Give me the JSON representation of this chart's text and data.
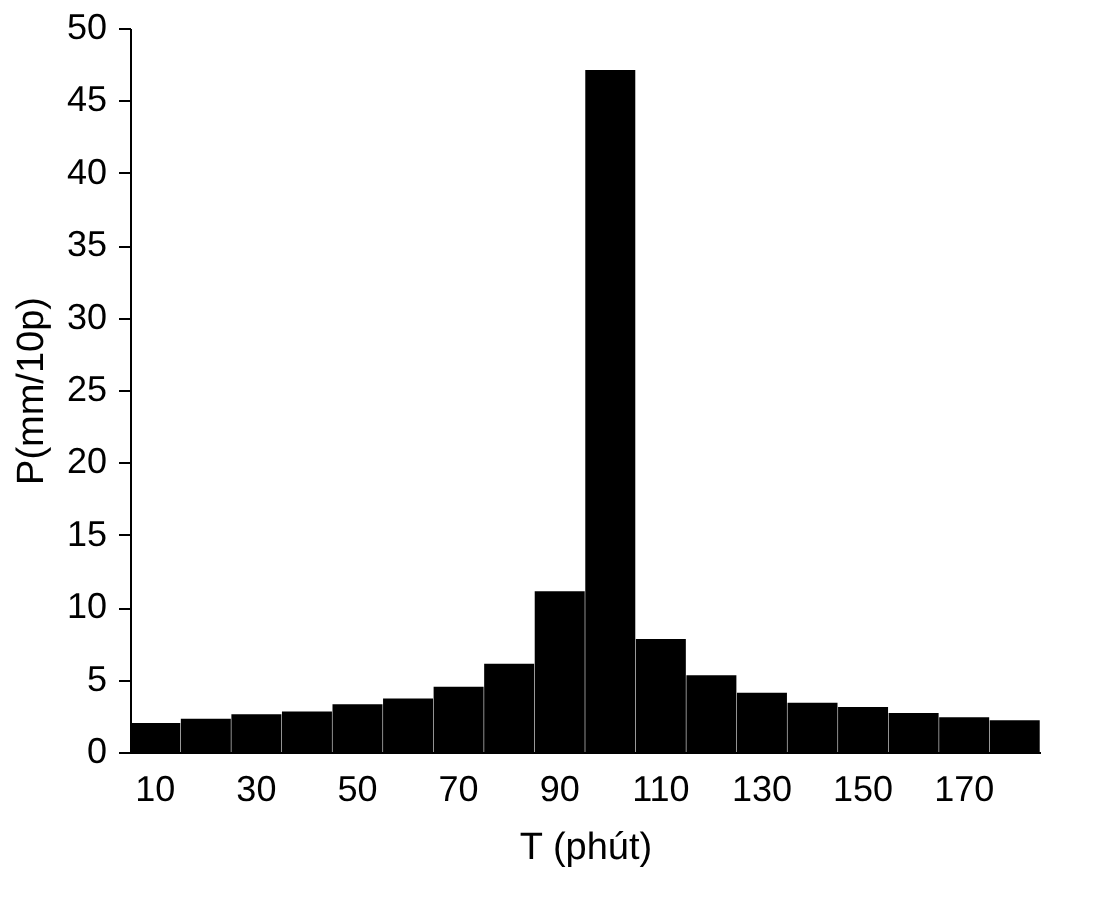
{
  "chart_data": {
    "type": "bar",
    "xlabel": "T (phút)",
    "ylabel": "P(mm/10p)",
    "categories": [
      "10",
      null,
      "30",
      null,
      "50",
      null,
      "70",
      null,
      "90",
      null,
      "110",
      null,
      "130",
      null,
      "150",
      null,
      "170",
      null
    ],
    "values": [
      2.0,
      2.3,
      2.6,
      2.8,
      3.3,
      3.7,
      4.5,
      6.1,
      11.1,
      47.1,
      7.8,
      5.3,
      4.1,
      3.4,
      3.1,
      2.7,
      2.4,
      2.2
    ],
    "color": "#000000",
    "ylim": [
      0,
      50
    ],
    "yticks": [
      0,
      5,
      10,
      15,
      20,
      25,
      30,
      35,
      40,
      45,
      50
    ],
    "grid": false
  }
}
